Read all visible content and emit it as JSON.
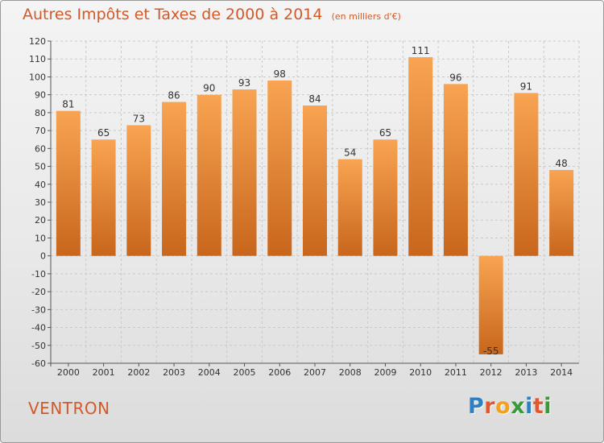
{
  "title": "Autres Impôts et Taxes de 2000 à 2014",
  "unit_note": "(en milliers d'€)",
  "place_name": "VENTRON",
  "brand": "Proxiti",
  "colors": {
    "title": "#d25a28",
    "bar_dark": "#c8661c",
    "bar_light": "#f8a452",
    "grid": "#c9c9c9",
    "brand": [
      "#2f7fc1",
      "#e4572e",
      "#f2a11f",
      "#3a9a3a",
      "#2f7fc1",
      "#e4572e",
      "#3a9a3a"
    ]
  },
  "chart_data": {
    "type": "bar",
    "title": "Autres Impôts et Taxes de 2000 à 2014",
    "unit": "(en milliers d'€)",
    "categories": [
      "2000",
      "2001",
      "2002",
      "2003",
      "2004",
      "2005",
      "2006",
      "2007",
      "2008",
      "2009",
      "2010",
      "2011",
      "2012",
      "2013",
      "2014"
    ],
    "values": [
      81,
      65,
      73,
      86,
      90,
      93,
      98,
      84,
      54,
      65,
      111,
      96,
      -55,
      91,
      48
    ],
    "value_labels": [
      "81",
      "65",
      "73",
      "86",
      "90",
      "93",
      "98",
      "84",
      "54",
      "65",
      "111",
      "96",
      "-55",
      "91",
      "48"
    ],
    "ylim": [
      -60,
      120
    ],
    "yticks": [
      120,
      110,
      100,
      90,
      80,
      70,
      60,
      50,
      40,
      30,
      20,
      10,
      0,
      -10,
      -20,
      -30,
      -40,
      -50,
      -60
    ],
    "ytick_labels": [
      "120",
      "110",
      "100",
      "90",
      "80",
      "70",
      "60",
      "50",
      "40",
      "30",
      "20",
      "10",
      "0",
      "-10",
      "-20",
      "-30",
      "-40",
      "-50",
      "-60"
    ],
    "xlabel": "",
    "ylabel": "",
    "grid": true,
    "legend": "none"
  }
}
